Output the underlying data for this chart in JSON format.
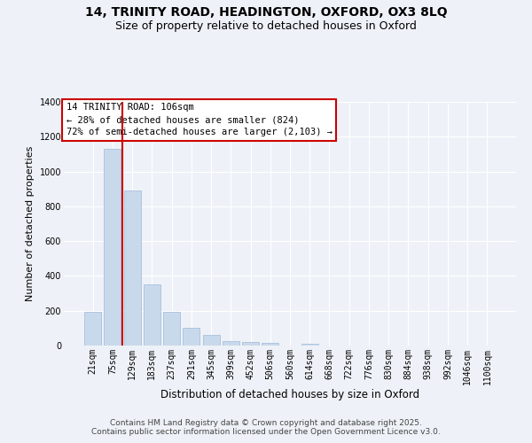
{
  "title_line1": "14, TRINITY ROAD, HEADINGTON, OXFORD, OX3 8LQ",
  "title_line2": "Size of property relative to detached houses in Oxford",
  "xlabel": "Distribution of detached houses by size in Oxford",
  "ylabel": "Number of detached properties",
  "bar_color": "#c9d9ec",
  "bar_edge_color": "#a0b8d8",
  "background_color": "#eef2f8",
  "grid_color": "#ffffff",
  "categories": [
    "21sqm",
    "75sqm",
    "129sqm",
    "183sqm",
    "237sqm",
    "291sqm",
    "345sqm",
    "399sqm",
    "452sqm",
    "506sqm",
    "560sqm",
    "614sqm",
    "668sqm",
    "722sqm",
    "776sqm",
    "830sqm",
    "884sqm",
    "938sqm",
    "992sqm",
    "1046sqm",
    "1100sqm"
  ],
  "values": [
    193,
    1128,
    893,
    349,
    195,
    103,
    60,
    24,
    22,
    14,
    0,
    8,
    0,
    0,
    0,
    0,
    0,
    0,
    0,
    0,
    0
  ],
  "ylim": [
    0,
    1400
  ],
  "yticks": [
    0,
    200,
    400,
    600,
    800,
    1000,
    1200,
    1400
  ],
  "vline_x_index": 1.5,
  "vline_color": "#cc0000",
  "annotation_text": "14 TRINITY ROAD: 106sqm\n← 28% of detached houses are smaller (824)\n72% of semi-detached houses are larger (2,103) →",
  "annotation_box_color": "#ffffff",
  "annotation_box_edge_color": "#cc0000",
  "footer_text": "Contains HM Land Registry data © Crown copyright and database right 2025.\nContains public sector information licensed under the Open Government Licence v3.0.",
  "title_fontsize": 10,
  "subtitle_fontsize": 9,
  "annotation_fontsize": 7.5,
  "footer_fontsize": 6.5,
  "xlabel_fontsize": 8.5,
  "ylabel_fontsize": 8,
  "tick_fontsize": 7
}
